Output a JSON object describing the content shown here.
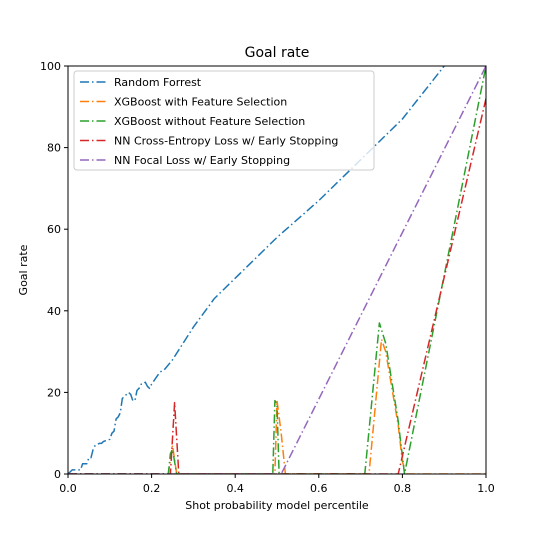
{
  "chart_data": {
    "type": "line",
    "title": "Goal rate",
    "xlabel": "Shot probability model percentile",
    "ylabel": "Goal rate",
    "xlim": [
      0,
      1
    ],
    "ylim": [
      0,
      100
    ],
    "xticks": [
      "0.0",
      "0.2",
      "0.4",
      "0.6",
      "0.8",
      "1.0"
    ],
    "yticks": [
      "0",
      "20",
      "40",
      "60",
      "80",
      "100"
    ],
    "legend_position": "top-left",
    "grid": false,
    "series": [
      {
        "name": "Random Forrest",
        "color": "#1f77b4",
        "points": [
          [
            0.0,
            0
          ],
          [
            0.01,
            1
          ],
          [
            0.02,
            1
          ],
          [
            0.03,
            1
          ],
          [
            0.035,
            2.5
          ],
          [
            0.045,
            2.5
          ],
          [
            0.05,
            4
          ],
          [
            0.055,
            4
          ],
          [
            0.06,
            6
          ],
          [
            0.065,
            7
          ],
          [
            0.075,
            7.5
          ],
          [
            0.08,
            7.5
          ],
          [
            0.085,
            8
          ],
          [
            0.1,
            8.5
          ],
          [
            0.105,
            10
          ],
          [
            0.11,
            10.5
          ],
          [
            0.115,
            13.5
          ],
          [
            0.12,
            14
          ],
          [
            0.125,
            15
          ],
          [
            0.13,
            18.5
          ],
          [
            0.135,
            19
          ],
          [
            0.14,
            19.5
          ],
          [
            0.145,
            20
          ],
          [
            0.15,
            19.5
          ],
          [
            0.155,
            18
          ],
          [
            0.16,
            18
          ],
          [
            0.165,
            20.5
          ],
          [
            0.17,
            21
          ],
          [
            0.175,
            22
          ],
          [
            0.18,
            22
          ],
          [
            0.185,
            22.5
          ],
          [
            0.19,
            21.5
          ],
          [
            0.195,
            21
          ],
          [
            0.2,
            22
          ],
          [
            0.21,
            23.5
          ],
          [
            0.22,
            25
          ],
          [
            0.23,
            25.5
          ],
          [
            0.25,
            28
          ],
          [
            0.3,
            36
          ],
          [
            0.35,
            43
          ],
          [
            0.4,
            48
          ],
          [
            0.5,
            58
          ],
          [
            0.6,
            67
          ],
          [
            0.7,
            77
          ],
          [
            0.8,
            87
          ],
          [
            0.9,
            100
          ]
        ]
      },
      {
        "name": "XGBoost with Feature Selection",
        "color": "#ff7f0e",
        "points": [
          [
            0.0,
            0
          ],
          [
            0.24,
            0
          ],
          [
            0.25,
            7
          ],
          [
            0.26,
            0
          ],
          [
            0.495,
            0
          ],
          [
            0.5,
            18
          ],
          [
            0.51,
            10
          ],
          [
            0.52,
            0
          ],
          [
            0.72,
            0
          ],
          [
            0.75,
            33
          ],
          [
            0.76,
            30
          ],
          [
            0.79,
            12
          ],
          [
            0.8,
            3
          ],
          [
            0.81,
            0
          ],
          [
            1.0,
            0
          ]
        ]
      },
      {
        "name": "XGBoost without Feature Selection",
        "color": "#2ca02c",
        "points": [
          [
            0.0,
            0
          ],
          [
            0.24,
            0
          ],
          [
            0.245,
            5
          ],
          [
            0.25,
            6
          ],
          [
            0.26,
            0
          ],
          [
            0.49,
            0
          ],
          [
            0.495,
            18
          ],
          [
            0.5,
            17
          ],
          [
            0.505,
            0
          ],
          [
            0.71,
            0
          ],
          [
            0.745,
            37
          ],
          [
            0.76,
            32
          ],
          [
            0.79,
            13
          ],
          [
            0.805,
            0
          ],
          [
            1.0,
            100
          ]
        ]
      },
      {
        "name": "NN Cross-Entropy Loss w/ Early Stopping",
        "color": "#d62728",
        "points": [
          [
            0.0,
            0
          ],
          [
            0.245,
            0
          ],
          [
            0.255,
            17.5
          ],
          [
            0.265,
            0
          ],
          [
            0.79,
            0
          ],
          [
            1.0,
            92
          ]
        ]
      },
      {
        "name": "NN Focal Loss w/ Early Stopping",
        "color": "#9467bd",
        "points": [
          [
            0.0,
            0
          ],
          [
            0.51,
            0
          ],
          [
            1.0,
            100
          ]
        ]
      }
    ]
  }
}
